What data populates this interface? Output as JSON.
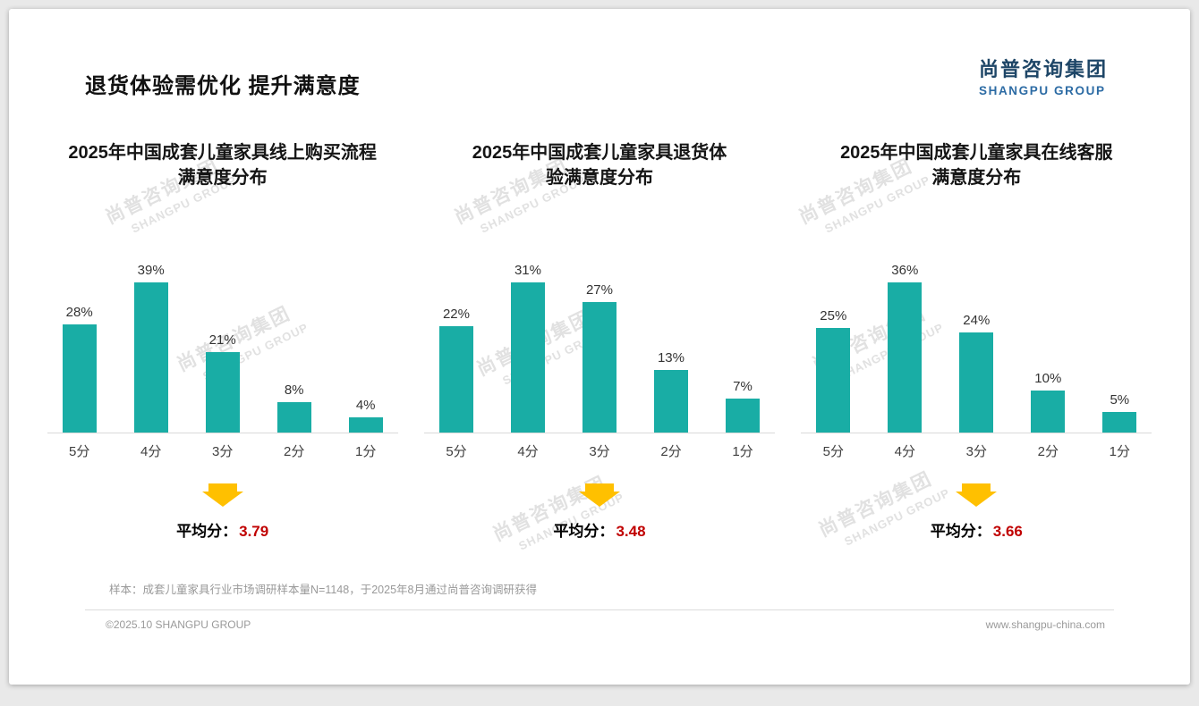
{
  "page": {
    "title": "退货体验需优化 提升满意度",
    "logo": {
      "cn": "尚普咨询集团",
      "en": "SHANGPU GROUP"
    },
    "watermark": {
      "cn": "尚普咨询集团",
      "en": "SHANGPU GROUP"
    },
    "footer": {
      "sample_note": "样本：成套儿童家具行业市场调研样本量N=1148，于2025年8月通过尚普咨询调研获得",
      "copyright": "©2025.10 SHANGPU GROUP",
      "website": "www.shangpu-china.com"
    }
  },
  "colors": {
    "bar": "#19ada5",
    "average_value": "#c00000",
    "arrow": "#ffc000",
    "logo_blue": "#1e4667"
  },
  "chart_data": [
    {
      "type": "bar",
      "title": "2025年中国成套儿童家具线上购买流程满意度分布",
      "title_lines": [
        "2025年中国成套儿童家具线上购买流程",
        "满意度分布"
      ],
      "categories": [
        "5分",
        "4分",
        "3分",
        "2分",
        "1分"
      ],
      "values": [
        28,
        39,
        21,
        8,
        4
      ],
      "unit": "%",
      "bar_color": "#19ada5",
      "average_label": "平均分：",
      "average": "3.79",
      "xlabel": "",
      "ylabel": "",
      "y_axis_visible": false,
      "grid": false,
      "legend": "none"
    },
    {
      "type": "bar",
      "title": "2025年中国成套儿童家具退货体验满意度分布",
      "title_lines": [
        "2025年中国成套儿童家具退货体",
        "验满意度分布"
      ],
      "categories": [
        "5分",
        "4分",
        "3分",
        "2分",
        "1分"
      ],
      "values": [
        22,
        31,
        27,
        13,
        7
      ],
      "unit": "%",
      "bar_color": "#19ada5",
      "average_label": "平均分：",
      "average": "3.48",
      "xlabel": "",
      "ylabel": "",
      "y_axis_visible": false,
      "grid": false,
      "legend": "none"
    },
    {
      "type": "bar",
      "title": "2025年中国成套儿童家具在线客服满意度分布",
      "title_lines": [
        "2025年中国成套儿童家具在线客服",
        "满意度分布"
      ],
      "categories": [
        "5分",
        "4分",
        "3分",
        "2分",
        "1分"
      ],
      "values": [
        25,
        36,
        24,
        10,
        5
      ],
      "unit": "%",
      "bar_color": "#19ada5",
      "average_label": "平均分：",
      "average": "3.66",
      "xlabel": "",
      "ylabel": "",
      "y_axis_visible": false,
      "grid": false,
      "legend": "none"
    }
  ]
}
